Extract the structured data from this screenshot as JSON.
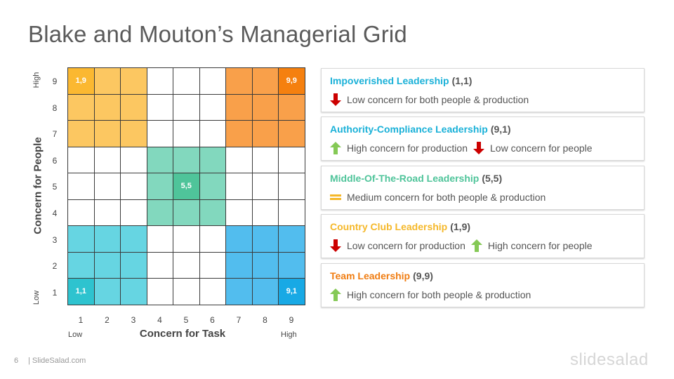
{
  "title": "Blake and Mouton’s Managerial Grid",
  "colors": {
    "yellow": "#fcc761",
    "yellow_dark": "#fbb831",
    "orange": "#f9a04a",
    "orange_dark": "#f5800f",
    "green": "#82d8be",
    "green_dark": "#4fc49a",
    "cyan": "#66d5e2",
    "cyan_dark": "#2ec3cf",
    "blue": "#52bdee",
    "blue_dark": "#18a9e5",
    "up_arrow": "#85c956",
    "down_arrow": "#cc0000",
    "equal_icon": "#f5b82a"
  },
  "grid": {
    "y_ticks": [
      "9",
      "8",
      "7",
      "6",
      "5",
      "4",
      "3",
      "2",
      "1"
    ],
    "x_ticks": [
      "1",
      "2",
      "3",
      "4",
      "5",
      "6",
      "7",
      "8",
      "9"
    ],
    "y_title": "Concern for People",
    "x_title": "Concern for Task",
    "y_low": "Low",
    "y_high": "High",
    "x_low": "Low",
    "x_high": "High",
    "labels": {
      "c_1_9": "1,9",
      "c_9_9": "9,9",
      "c_5_5": "5,5",
      "c_1_1": "1,1",
      "c_9_1": "9,1"
    }
  },
  "cards": [
    {
      "title": "Impoverished Leadership",
      "coord": "(1,1)",
      "color": "#1ab1d8",
      "items": [
        {
          "icon": "down-arrow-icon",
          "text": "Low concern for both people & production"
        }
      ]
    },
    {
      "title": "Authority-Compliance Leadership",
      "coord": "(9,1)",
      "color": "#1ab1d8",
      "items": [
        {
          "icon": "up-arrow-icon",
          "text": "High concern for production"
        },
        {
          "icon": "down-arrow-icon",
          "text": "Low concern for people"
        }
      ]
    },
    {
      "title": "Middle-Of-The-Road Leadership",
      "coord": "(5,5)",
      "color": "#4fc49a",
      "items": [
        {
          "icon": "equal-icon",
          "text": "Medium concern for both people & production"
        }
      ]
    },
    {
      "title": "Country Club Leadership",
      "coord": "(1,9)",
      "color": "#f5b82a",
      "items": [
        {
          "icon": "down-arrow-icon",
          "text": "Low concern for production"
        },
        {
          "icon": "up-arrow-icon",
          "text": "High concern for people"
        }
      ]
    },
    {
      "title": "Team Leadership",
      "coord": "(9,9)",
      "color": "#f07d12",
      "items": [
        {
          "icon": "up-arrow-icon",
          "text": "High concern for both people & production"
        }
      ]
    }
  ],
  "footer": {
    "page_number": "6",
    "site": "| SlideSalad.com",
    "logo": "slidesalad"
  }
}
